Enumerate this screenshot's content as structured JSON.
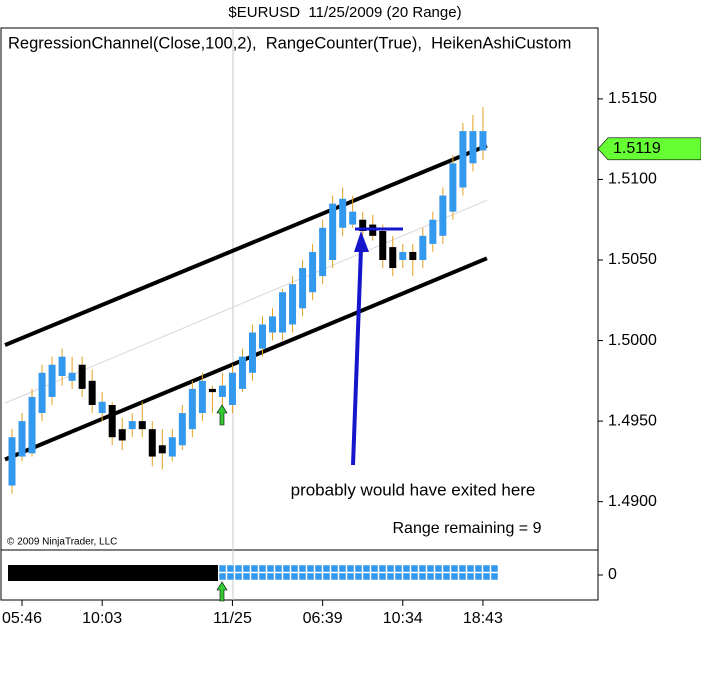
{
  "chart_data": {
    "type": "candlestick",
    "title": "$EURUSD  11/25/2009 (20 Range)",
    "indicators": "RegressionChannel(Close,100,2),  RangeCounter(True),  HeikenAshiCustom",
    "copyright": "© 2009 NinjaTrader, LLC",
    "annotation": "probably would have exited here",
    "range_text": "Range remaining = 9",
    "categories": [
      null,
      "05:46",
      null,
      null,
      null,
      null,
      null,
      null,
      null,
      "10:03",
      null,
      null,
      null,
      null,
      null,
      null,
      null,
      null,
      null,
      null,
      null,
      null,
      "11/25",
      null,
      null,
      null,
      null,
      null,
      null,
      null,
      null,
      "06:39",
      null,
      null,
      null,
      null,
      null,
      null,
      null,
      "10:34",
      null,
      null,
      null,
      null,
      null,
      null,
      null,
      "18:43"
    ],
    "open": [
      1.491,
      1.4928,
      1.493,
      1.4955,
      1.4965,
      1.4978,
      1.4975,
      1.4985,
      1.4975,
      1.4955,
      1.496,
      1.4945,
      1.4945,
      1.495,
      1.4945,
      1.4935,
      1.4928,
      1.4935,
      1.4945,
      1.4955,
      1.497,
      1.4965,
      1.496,
      1.497,
      1.498,
      1.4995,
      1.5005,
      1.5005,
      1.501,
      1.502,
      1.503,
      1.504,
      1.505,
      1.507,
      1.5072,
      1.5075,
      1.5072,
      1.5068,
      1.5058,
      1.505,
      1.5055,
      1.505,
      1.506,
      1.5065,
      1.508,
      1.5095,
      1.511,
      1.5118
    ],
    "high": [
      1.4945,
      1.4955,
      1.497,
      1.4985,
      1.499,
      1.4995,
      1.499,
      1.499,
      1.4982,
      1.4968,
      1.4962,
      1.4952,
      1.4955,
      1.4962,
      1.495,
      1.4945,
      1.4945,
      1.496,
      1.4975,
      1.498,
      1.4972,
      1.498,
      1.4985,
      1.4995,
      1.501,
      1.5015,
      1.502,
      1.5032,
      1.504,
      1.505,
      1.506,
      1.5075,
      1.509,
      1.5095,
      1.509,
      1.508,
      1.5078,
      1.5072,
      1.5065,
      1.506,
      1.506,
      1.507,
      1.508,
      1.5095,
      1.5115,
      1.5135,
      1.514,
      1.5145
    ],
    "low": [
      1.4905,
      1.4925,
      1.4928,
      1.495,
      1.496,
      1.4972,
      1.497,
      1.4965,
      1.4955,
      1.495,
      1.4935,
      1.4932,
      1.494,
      1.494,
      1.4922,
      1.492,
      1.4925,
      1.4932,
      1.494,
      1.495,
      1.4955,
      1.496,
      1.4955,
      1.4968,
      1.4975,
      1.499,
      1.5,
      1.5,
      1.5005,
      1.5015,
      1.5025,
      1.5035,
      1.5045,
      1.5065,
      1.507,
      1.5065,
      1.5062,
      1.5045,
      1.504,
      1.5045,
      1.504,
      1.5045,
      1.5055,
      1.506,
      1.5075,
      1.509,
      1.5105,
      1.5112
    ],
    "close": [
      1.494,
      1.495,
      1.4965,
      1.498,
      1.4985,
      1.499,
      1.498,
      1.497,
      1.496,
      1.4962,
      1.494,
      1.4938,
      1.495,
      1.4945,
      1.4928,
      1.493,
      1.494,
      1.4955,
      1.497,
      1.4975,
      1.4968,
      1.4972,
      1.498,
      1.499,
      1.5005,
      1.501,
      1.5015,
      1.503,
      1.5035,
      1.5045,
      1.5055,
      1.507,
      1.5085,
      1.5088,
      1.508,
      1.5068,
      1.5065,
      1.505,
      1.5045,
      1.5055,
      1.505,
      1.5065,
      1.5075,
      1.509,
      1.511,
      1.513,
      1.513,
      1.513
    ],
    "up_color": "#3399ee",
    "down_color": "#000000",
    "wick_color": "#e8a020",
    "channel": [
      {
        "color": "#000000",
        "values": [
          1.4999,
          1.512
        ]
      },
      {
        "color": "#d8d8d8",
        "values": [
          1.4963,
          1.5086
        ]
      },
      {
        "color": "#000000",
        "values": [
          1.4928,
          1.505
        ]
      }
    ],
    "last_price": 1.5119,
    "last_price_color": "#66ff33",
    "ylim": [
      1.487,
      1.5194
    ],
    "yticks": [
      {
        "value": 1.515,
        "label": "1.5150"
      },
      {
        "value": 1.51,
        "label": "1.5100"
      },
      {
        "value": 1.505,
        "label": "1.5050"
      },
      {
        "value": 1.5,
        "label": "1.5000"
      },
      {
        "value": 1.495,
        "label": "1.4950"
      },
      {
        "value": 1.49,
        "label": "1.4900"
      }
    ],
    "lower_ylim": [
      -1,
      1
    ],
    "lower_yticks": [
      0
    ]
  }
}
